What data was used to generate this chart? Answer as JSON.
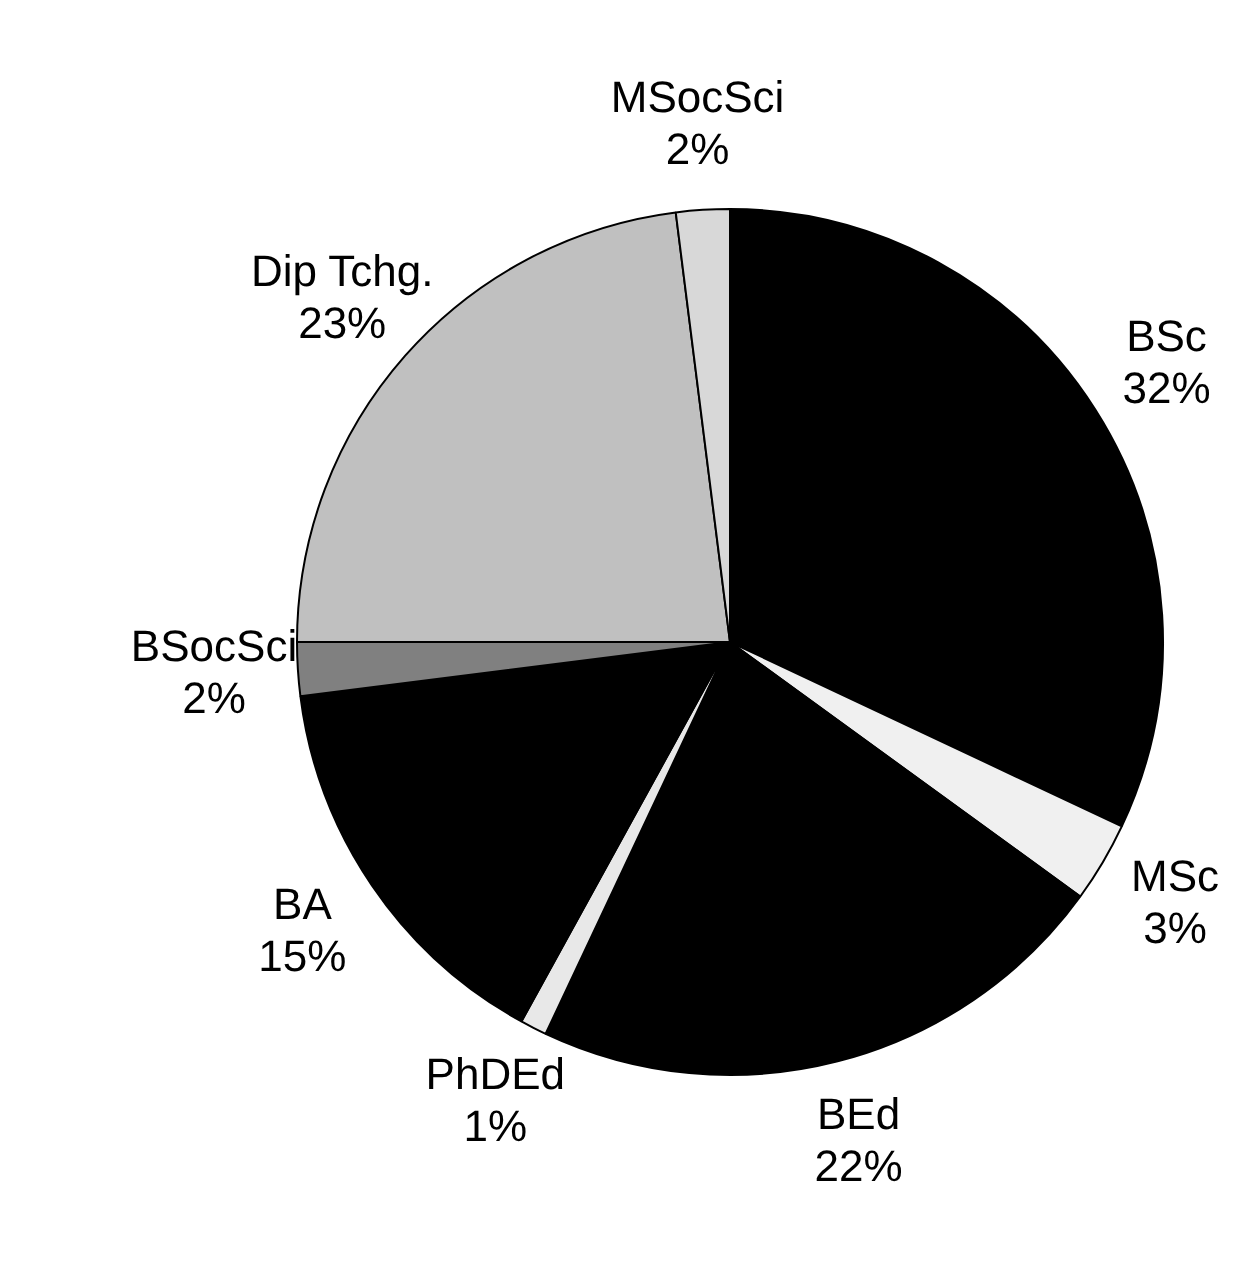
{
  "chart_data": {
    "type": "pie",
    "categories": [
      "BSc",
      "MSc",
      "BEd",
      "PhDEd",
      "BA",
      "BSocSci",
      "Dip Tchg.",
      "MSocSci"
    ],
    "values": [
      32,
      3,
      22,
      1,
      15,
      2,
      23,
      2
    ],
    "value_labels": [
      "32%",
      "3%",
      "22%",
      "1%",
      "15%",
      "2%",
      "23%",
      "2%"
    ],
    "colors": [
      "#000000",
      "#f0f0f0",
      "#000000",
      "#e8e8e8",
      "#000000",
      "#808080",
      "#c0c0c0",
      "#d8d8d8"
    ],
    "legend": false
  }
}
